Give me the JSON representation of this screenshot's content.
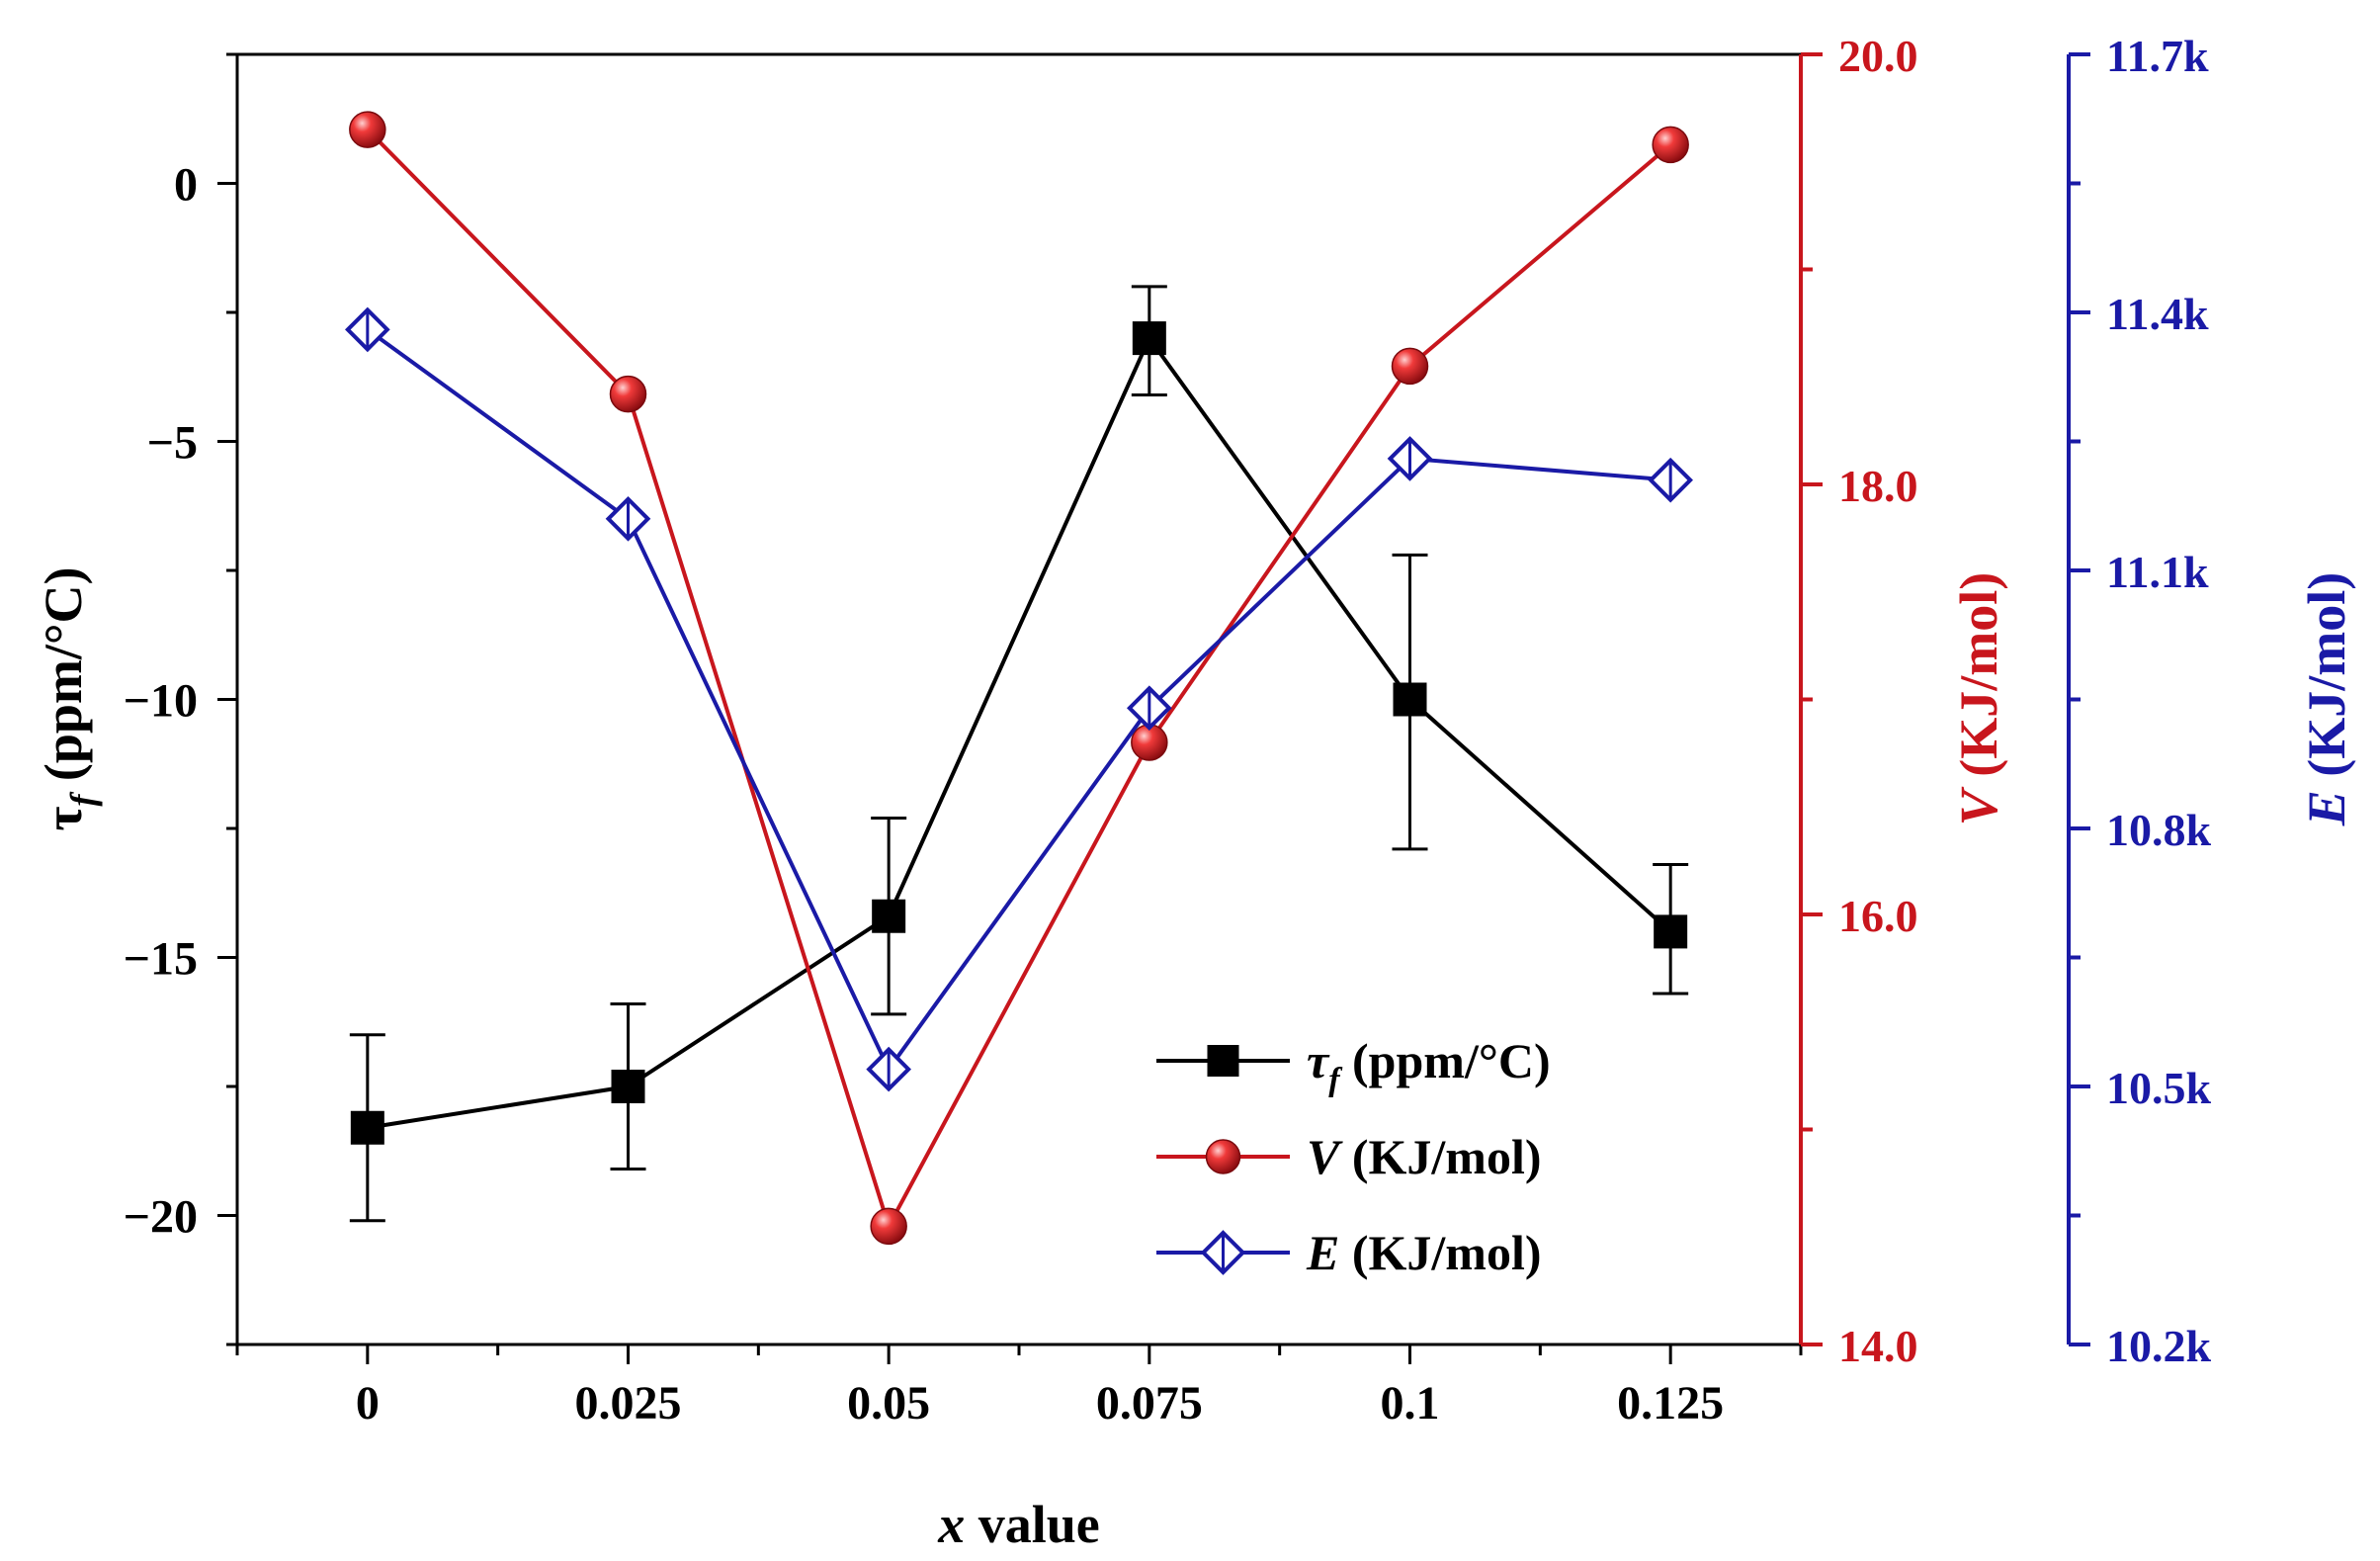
{
  "chart_data": {
    "type": "line",
    "xlabel": "x value",
    "xlabel_var": "x",
    "xlabel_rest": "value",
    "x": [
      0,
      0.025,
      0.05,
      0.075,
      0.1,
      0.125
    ],
    "x_tick_labels": [
      "0",
      "0.025",
      "0.05",
      "0.075",
      "0.1",
      "0.125"
    ],
    "xlim": [
      -0.0125,
      0.1375
    ],
    "colors": {
      "tau": "#000000",
      "V": "#c8161d",
      "E": "#1a1aa6"
    },
    "axes": {
      "left": {
        "label_sym": "τ",
        "label_sub": "f",
        "label_unit": "(ppm/°C)",
        "ylim": [
          -22.5,
          2.5
        ],
        "ticks": [
          0,
          -5,
          -10,
          -15,
          -20
        ],
        "tick_labels": [
          "0",
          "−5",
          "−10",
          "−15",
          "−20"
        ]
      },
      "right1": {
        "label_var": "V",
        "label_unit": "(KJ/mol)",
        "ylim": [
          14.0,
          20.0
        ],
        "ticks": [
          20.0,
          18.0,
          16.0,
          14.0
        ],
        "tick_labels": [
          "20.0",
          "18.0",
          "16.0",
          "14.0"
        ]
      },
      "right2": {
        "label_var": "E",
        "label_unit": "(KJ/mol)",
        "ylim": [
          10200,
          11700
        ],
        "ticks": [
          11700,
          11400,
          11100,
          10800,
          10500,
          10200
        ],
        "tick_labels": [
          "11.7k",
          "11.4k",
          "11.1k",
          "10.8k",
          "10.5k",
          "10.2k"
        ]
      }
    },
    "series": [
      {
        "name": "tau_f",
        "axis": "left",
        "marker": "square",
        "values": [
          -18.3,
          -17.5,
          -14.2,
          -3.0,
          -10.0,
          -14.5
        ],
        "err_low": [
          -20.1,
          -19.1,
          -16.1,
          -4.1,
          -12.9,
          -15.7
        ],
        "err_high": [
          -16.5,
          -15.9,
          -12.3,
          -2.0,
          -7.2,
          -13.2
        ],
        "legend_sym": "τ",
        "legend_sub": "f",
        "legend_unit": "(ppm/°C)"
      },
      {
        "name": "V",
        "axis": "right1",
        "marker": "sphere",
        "values": [
          19.65,
          18.42,
          14.55,
          16.8,
          18.55,
          19.58
        ],
        "legend_sym": "V",
        "legend_unit": "(KJ/mol)"
      },
      {
        "name": "E",
        "axis": "right2",
        "marker": "diamond",
        "values": [
          11380,
          11160,
          10520,
          10940,
          11230,
          11205
        ],
        "legend_sym": "E",
        "legend_unit": "(KJ/mol)"
      }
    ],
    "legend_position": "bottom-right"
  }
}
